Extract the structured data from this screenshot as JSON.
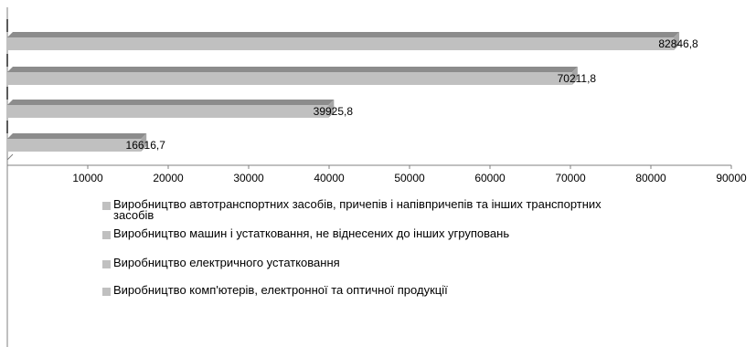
{
  "chart_data": {
    "type": "bar",
    "orientation": "horizontal",
    "style": "3d",
    "categories": [
      "Виробництво автотранспортних засобів, причепів і напівпричепів та інших транспортних засобів",
      "Виробництво машин і устатковання, не віднесених до інших угруповань",
      "Виробництво електричного устатковання",
      "Виробництво комп'ютерів, електронної та оптичної продукції"
    ],
    "values": [
      82846.8,
      70211.8,
      39925.8,
      16616.7
    ],
    "value_labels": [
      "82846,8",
      "70211,8",
      "39925,8",
      "16616,7"
    ],
    "xlim": [
      0,
      90000
    ],
    "xticks": [
      "10000",
      "20000",
      "30000",
      "40000",
      "50000",
      "60000",
      "70000",
      "80000",
      "90000"
    ],
    "grid": false,
    "legend_position": "bottom",
    "colors": {
      "bar_front": "#c0c0c0",
      "bar_top": "#8c8c8c",
      "bar_side": "#a6a6a6",
      "axis": "#808080"
    }
  }
}
